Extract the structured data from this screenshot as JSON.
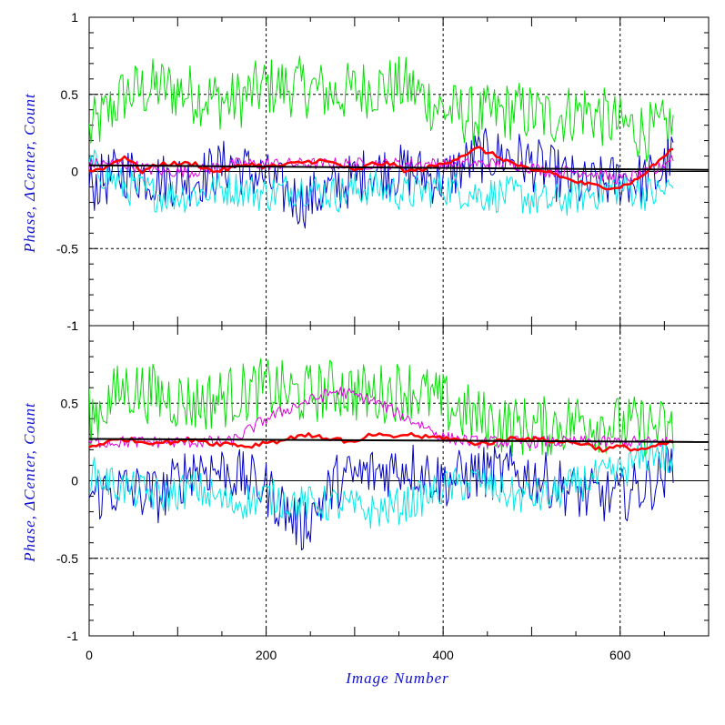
{
  "chart_data": {
    "type": "line",
    "xlabel": "Image Number",
    "xlim": [
      0,
      700
    ],
    "x_ticks": [
      "0",
      "200",
      "400",
      "600"
    ],
    "colors": {
      "dark_blue": "#0000c8",
      "cyan": "#00e8e8",
      "green": "#00e000",
      "magenta": "#e000e0",
      "red": "#ff0000",
      "black": "#000000",
      "grid": "#000000"
    },
    "grid": "dashed, major ticks",
    "panels": [
      {
        "ylabel": "Phase, ΔCenter, Count",
        "ylim": [
          -1,
          1
        ],
        "y_ticks": [
          {
            "value": 1,
            "label": "1"
          },
          {
            "value": 0.5,
            "label": "0.5"
          },
          {
            "value": 0,
            "label": "0"
          },
          {
            "value": -0.5,
            "label": "-0.5"
          },
          {
            "value": -1,
            "label": "-1"
          }
        ],
        "series": [
          {
            "color_key": "green",
            "x": [
              0,
              40,
              80,
              120,
              160,
              200,
              240,
              280,
              320,
              360,
              400,
              440,
              480,
              520,
              560,
              600,
              640,
              660
            ],
            "y": [
              0.25,
              0.5,
              0.55,
              0.5,
              0.45,
              0.55,
              0.55,
              0.5,
              0.55,
              0.55,
              0.4,
              0.35,
              0.4,
              0.35,
              0.4,
              0.3,
              0.25,
              0.3
            ]
          },
          {
            "color_key": "dark_blue",
            "x": [
              0,
              40,
              80,
              120,
              160,
              200,
              240,
              280,
              320,
              360,
              400,
              440,
              480,
              520,
              560,
              600,
              640,
              660
            ],
            "y": [
              -0.1,
              0.0,
              -0.05,
              -0.05,
              0.05,
              -0.05,
              -0.2,
              -0.1,
              0.0,
              0.0,
              -0.05,
              0.1,
              0.1,
              0.0,
              -0.1,
              -0.05,
              -0.05,
              0.1
            ]
          },
          {
            "color_key": "cyan",
            "x": [
              0,
              40,
              80,
              120,
              160,
              200,
              240,
              280,
              320,
              360,
              400,
              440,
              480,
              520,
              560,
              600,
              640,
              660
            ],
            "y": [
              0.05,
              -0.1,
              -0.15,
              -0.15,
              -0.1,
              -0.15,
              -0.1,
              -0.15,
              -0.1,
              -0.15,
              -0.1,
              -0.15,
              -0.15,
              -0.2,
              -0.15,
              -0.1,
              -0.15,
              -0.1
            ]
          },
          {
            "color_key": "magenta",
            "x": [
              0,
              40,
              80,
              120,
              160,
              200,
              240,
              280,
              320,
              360,
              400,
              440,
              480,
              520,
              560,
              600,
              640,
              660
            ],
            "y": [
              0.05,
              0.05,
              0.0,
              0.0,
              0.05,
              0.05,
              0.05,
              0.05,
              0.05,
              0.05,
              0.05,
              0.05,
              0.05,
              0.0,
              0.0,
              -0.05,
              0.0,
              0.1
            ]
          },
          {
            "color_key": "red",
            "x": [
              0,
              20,
              40,
              60,
              80,
              100,
              120,
              140,
              160,
              180,
              200,
              220,
              240,
              260,
              280,
              300,
              320,
              340,
              360,
              380,
              400,
              420,
              440,
              460,
              480,
              500,
              520,
              540,
              560,
              580,
              600,
              620,
              640,
              660
            ],
            "y": [
              0.0,
              0.03,
              0.1,
              0.0,
              0.05,
              0.05,
              0.05,
              0.0,
              0.02,
              0.05,
              0.03,
              0.04,
              0.06,
              0.07,
              0.05,
              0.0,
              0.05,
              0.05,
              0.0,
              0.02,
              0.05,
              0.1,
              0.15,
              0.1,
              0.05,
              0.0,
              0.0,
              -0.05,
              -0.08,
              -0.1,
              -0.1,
              -0.05,
              0.05,
              0.15
            ]
          },
          {
            "color_key": "black",
            "x": [
              0,
              700
            ],
            "y": [
              0.04,
              0.01
            ]
          }
        ]
      },
      {
        "ylabel": "Phase, ΔCenter, Count",
        "ylim": [
          -1,
          1
        ],
        "y_ticks": [
          {
            "value": 1,
            "label": "1"
          },
          {
            "value": 0.5,
            "label": "0.5"
          },
          {
            "value": 0,
            "label": "0"
          },
          {
            "value": -0.5,
            "label": "-0.5"
          },
          {
            "value": -1,
            "label": "-1"
          }
        ],
        "series": [
          {
            "color_key": "green",
            "x": [
              0,
              40,
              80,
              120,
              160,
              200,
              240,
              280,
              320,
              360,
              400,
              440,
              480,
              520,
              560,
              600,
              640,
              660
            ],
            "y": [
              0.4,
              0.6,
              0.55,
              0.5,
              0.55,
              0.6,
              0.55,
              0.6,
              0.55,
              0.6,
              0.5,
              0.4,
              0.35,
              0.35,
              0.4,
              0.35,
              0.35,
              0.3
            ]
          },
          {
            "color_key": "dark_blue",
            "x": [
              0,
              40,
              80,
              120,
              160,
              200,
              240,
              280,
              320,
              360,
              400,
              440,
              480,
              520,
              560,
              600,
              640,
              660
            ],
            "y": [
              -0.1,
              -0.05,
              -0.1,
              0.1,
              0.05,
              -0.05,
              -0.3,
              0.0,
              0.05,
              0.1,
              0.0,
              0.05,
              0.05,
              0.0,
              -0.1,
              -0.1,
              0.0,
              0.1
            ]
          },
          {
            "color_key": "cyan",
            "x": [
              0,
              40,
              80,
              120,
              160,
              200,
              240,
              280,
              320,
              360,
              400,
              440,
              480,
              520,
              560,
              600,
              640,
              660
            ],
            "y": [
              0.05,
              -0.05,
              -0.1,
              -0.05,
              -0.15,
              -0.1,
              -0.15,
              -0.15,
              -0.2,
              -0.15,
              -0.05,
              0.0,
              -0.1,
              -0.1,
              0.0,
              0.05,
              0.2,
              0.1
            ]
          },
          {
            "color_key": "magenta",
            "x": [
              0,
              40,
              80,
              120,
              160,
              200,
              240,
              280,
              320,
              360,
              380,
              400,
              440,
              480,
              520,
              560,
              600,
              640,
              660
            ],
            "y": [
              0.25,
              0.25,
              0.25,
              0.25,
              0.25,
              0.4,
              0.5,
              0.58,
              0.52,
              0.4,
              0.35,
              0.28,
              0.25,
              0.25,
              0.25,
              0.25,
              0.25,
              0.25,
              0.25
            ]
          },
          {
            "color_key": "red",
            "x": [
              0,
              20,
              40,
              60,
              80,
              100,
              120,
              140,
              160,
              180,
              200,
              220,
              240,
              260,
              280,
              300,
              320,
              340,
              360,
              380,
              400,
              420,
              440,
              460,
              480,
              500,
              520,
              540,
              560,
              580,
              600,
              620,
              640,
              660
            ],
            "y": [
              0.22,
              0.25,
              0.27,
              0.25,
              0.25,
              0.25,
              0.27,
              0.24,
              0.24,
              0.22,
              0.25,
              0.26,
              0.3,
              0.28,
              0.27,
              0.24,
              0.3,
              0.28,
              0.3,
              0.28,
              0.28,
              0.26,
              0.24,
              0.25,
              0.28,
              0.27,
              0.26,
              0.25,
              0.24,
              0.2,
              0.22,
              0.2,
              0.22,
              0.25
            ]
          },
          {
            "color_key": "black",
            "x": [
              0,
              700
            ],
            "y": [
              0.27,
              0.25
            ]
          }
        ]
      }
    ]
  }
}
